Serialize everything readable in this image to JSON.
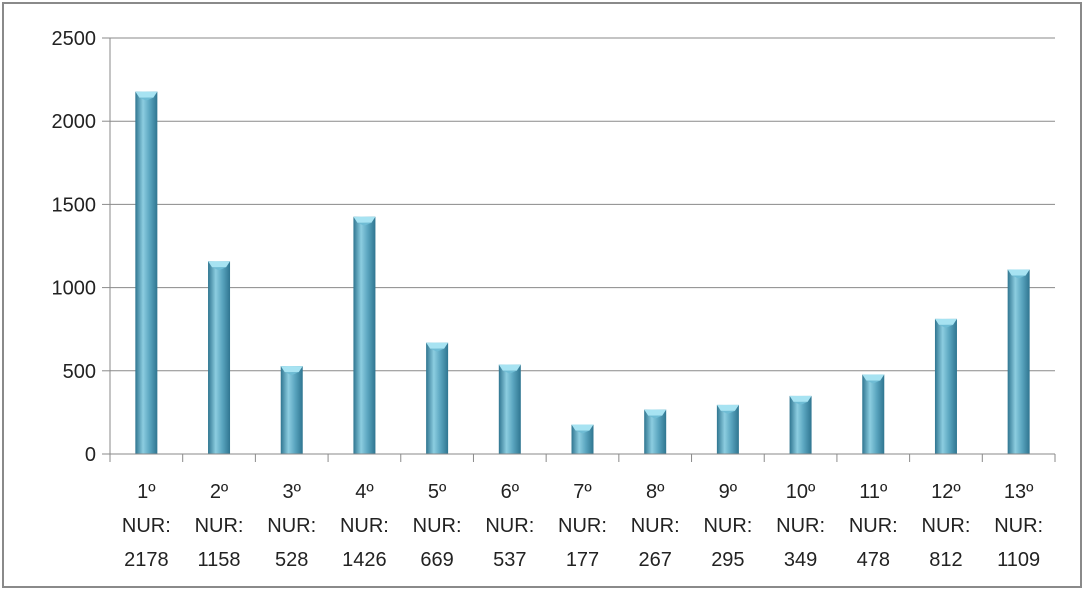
{
  "chart_data": {
    "type": "bar",
    "title": "",
    "xlabel": "",
    "ylabel": "",
    "ylim": [
      0,
      2500
    ],
    "yticks": [
      0,
      500,
      1000,
      1500,
      2000,
      2500
    ],
    "grid": true,
    "legend": "none",
    "categories": [
      [
        "1º",
        "NUR:",
        "2178"
      ],
      [
        "2º",
        "NUR:",
        "1158"
      ],
      [
        "3º",
        "NUR:",
        "528"
      ],
      [
        "4º",
        "NUR:",
        "1426"
      ],
      [
        "5º",
        "NUR:",
        "669"
      ],
      [
        "6º",
        "NUR:",
        "537"
      ],
      [
        "7º",
        "NUR:",
        "177"
      ],
      [
        "8º",
        "NUR:",
        "267"
      ],
      [
        "9º",
        "NUR:",
        "295"
      ],
      [
        "10º",
        "NUR:",
        "349"
      ],
      [
        "11º",
        "NUR:",
        "478"
      ],
      [
        "12º",
        "NUR:",
        "812"
      ],
      [
        "13º",
        "NUR:",
        "1109"
      ]
    ],
    "values": [
      2178,
      1158,
      528,
      1426,
      669,
      537,
      177,
      267,
      295,
      349,
      478,
      812,
      1109
    ],
    "colors": {
      "bar": "#5aa5bf",
      "bar_dark": "#2f7590",
      "bar_light": "#8ccde0",
      "bar_top": "#a7e3f2",
      "grid": "#8a8a8a",
      "axis": "#8a8a8a",
      "border": "#8a8a8a"
    }
  }
}
